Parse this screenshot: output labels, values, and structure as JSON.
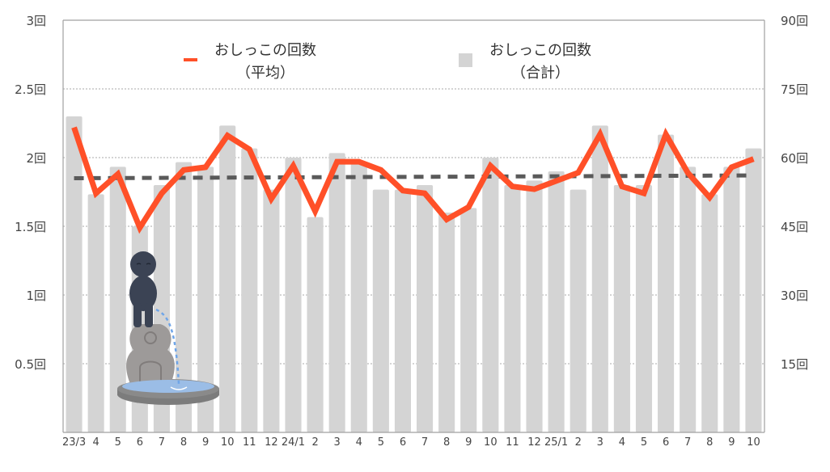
{
  "chart_data": {
    "type": "bar",
    "title": "",
    "categories": [
      "23/3",
      "4",
      "5",
      "6",
      "7",
      "8",
      "9",
      "10",
      "11",
      "12",
      "24/1",
      "2",
      "3",
      "4",
      "5",
      "6",
      "7",
      "8",
      "9",
      "10",
      "11",
      "12",
      "25/1",
      "2",
      "3",
      "4",
      "5",
      "6",
      "7",
      "8",
      "9",
      "10"
    ],
    "series": [
      {
        "name": "おしっこの回数（合計）",
        "type": "bar",
        "axis": "right",
        "color": "#d4d4d4",
        "values": [
          69,
          52,
          58,
          45,
          54,
          59,
          58,
          67,
          62,
          53,
          60,
          47,
          61,
          59,
          53,
          53,
          54,
          48,
          49,
          60,
          54,
          55,
          57,
          53,
          67,
          54,
          54,
          65,
          58,
          52,
          58,
          62
        ]
      },
      {
        "name": "おしっこの回数（平均）",
        "type": "line",
        "axis": "left",
        "color": "#ff5028",
        "values": [
          2.22,
          1.74,
          1.88,
          1.49,
          1.74,
          1.91,
          1.93,
          2.16,
          2.06,
          1.7,
          1.94,
          1.61,
          1.97,
          1.97,
          1.91,
          1.76,
          1.74,
          1.55,
          1.64,
          1.94,
          1.79,
          1.77,
          1.83,
          1.89,
          2.17,
          1.79,
          1.74,
          2.17,
          1.89,
          1.71,
          1.93,
          1.99
        ]
      },
      {
        "name": "平均の近似直線",
        "type": "trendline",
        "axis": "left",
        "color": "#5a5a5a",
        "values_start_end": [
          1.85,
          1.87
        ]
      }
    ],
    "left_axis": {
      "ylim": [
        0,
        3
      ],
      "ticks": [
        0.5,
        1,
        1.5,
        2,
        2.5,
        3
      ],
      "tick_labels": [
        "0.5回",
        "1回",
        "1.5回",
        "2回",
        "2.5回",
        "3回"
      ]
    },
    "right_axis": {
      "ylim": [
        0,
        90
      ],
      "ticks": [
        15,
        30,
        45,
        60,
        75,
        90
      ],
      "tick_labels": [
        "15回",
        "30回",
        "45回",
        "60回",
        "75回",
        "90回"
      ]
    },
    "xlabel": "",
    "ylabel_left": "",
    "ylabel_right": "",
    "grid": true,
    "legend_position": "top-inside"
  },
  "legend": {
    "line_label_1": "おしっこの回数",
    "line_label_2": "（平均）",
    "bar_label_1": "おしっこの回数",
    "bar_label_2": "（合計）"
  },
  "illustration": {
    "name": "manneken-pis-statue"
  },
  "colors": {
    "bar": "#d4d4d4",
    "line": "#ff5028",
    "trend": "#5a5a5a",
    "grid": "#aaaaaa",
    "axis": "#a0a0a0"
  }
}
